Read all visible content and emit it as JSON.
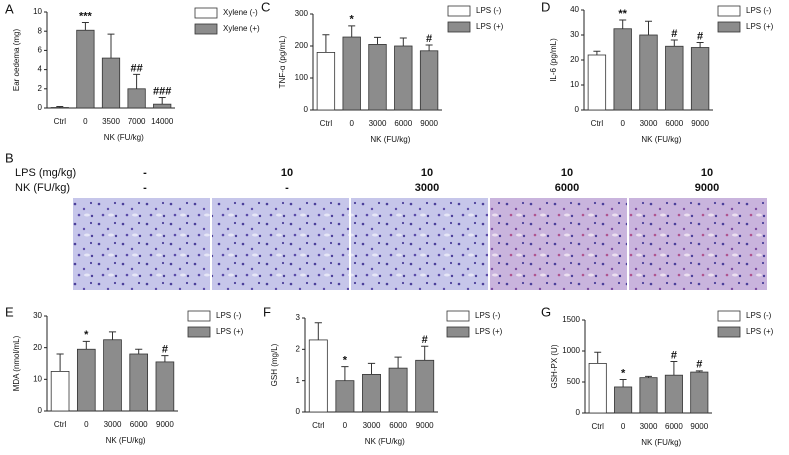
{
  "chart_data": [
    {
      "type": "bar",
      "label": "A",
      "y_label": "Ear oedema (mg)",
      "x_label": "NK (FU/kg)",
      "categories": [
        "Ctrl",
        "0",
        "3500",
        "7000",
        "14000"
      ],
      "series": [
        {
          "name": "Xylene (-)",
          "color": "#ffffff",
          "values": [
            0.05,
            null,
            null,
            null,
            null
          ],
          "errors": [
            0.1,
            null,
            null,
            null,
            null
          ]
        },
        {
          "name": "Xylene (+)",
          "color": "#8c8c8c",
          "values": [
            null,
            8.1,
            5.2,
            2.0,
            0.4
          ],
          "errors": [
            null,
            0.8,
            2.5,
            1.5,
            0.7
          ]
        }
      ],
      "annotations": [
        null,
        "***",
        null,
        "##",
        "###"
      ],
      "ylim": [
        0,
        10
      ],
      "yticks": [
        0,
        2,
        4,
        6,
        8,
        10
      ]
    },
    {
      "type": "bar",
      "label": "C",
      "y_label": "TNF-α (pg/mL)",
      "x_label": "NK (FU/kg)",
      "categories": [
        "Ctrl",
        "0",
        "3000",
        "6000",
        "9000"
      ],
      "series": [
        {
          "name": "LPS (-)",
          "color": "#ffffff",
          "values": [
            180,
            null,
            null,
            null,
            null
          ],
          "errors": [
            55,
            null,
            null,
            null,
            null
          ]
        },
        {
          "name": "LPS (+)",
          "color": "#8c8c8c",
          "values": [
            null,
            228,
            205,
            200,
            185
          ],
          "errors": [
            null,
            35,
            22,
            25,
            18
          ]
        }
      ],
      "annotations": [
        null,
        "*",
        null,
        null,
        "#"
      ],
      "ylim": [
        0,
        300
      ],
      "yticks": [
        0,
        100,
        200,
        300
      ]
    },
    {
      "type": "bar",
      "label": "D",
      "y_label": "IL-6 (pg/mL)",
      "x_label": "NK (FU/kg)",
      "categories": [
        "Ctrl",
        "0",
        "3000",
        "6000",
        "9000"
      ],
      "series": [
        {
          "name": "LPS (-)",
          "color": "#ffffff",
          "values": [
            22,
            null,
            null,
            null,
            null
          ],
          "errors": [
            1.5,
            null,
            null,
            null,
            null
          ]
        },
        {
          "name": "LPS (+)",
          "color": "#8c8c8c",
          "values": [
            null,
            32.5,
            30,
            25.5,
            25
          ],
          "errors": [
            null,
            3.5,
            5.5,
            2.5,
            2
          ]
        }
      ],
      "annotations": [
        null,
        "**",
        null,
        "#",
        "#"
      ],
      "ylim": [
        0,
        40
      ],
      "yticks": [
        0,
        10,
        20,
        30,
        40
      ]
    },
    {
      "type": "bar",
      "label": "E",
      "y_label": "MDA (nmol/mL)",
      "x_label": "NK (FU/kg)",
      "categories": [
        "Ctrl",
        "0",
        "3000",
        "6000",
        "9000"
      ],
      "series": [
        {
          "name": "LPS (-)",
          "color": "#ffffff",
          "values": [
            12.5,
            null,
            null,
            null,
            null
          ],
          "errors": [
            5.5,
            null,
            null,
            null,
            null
          ]
        },
        {
          "name": "LPS (+)",
          "color": "#8c8c8c",
          "values": [
            null,
            19.5,
            22.5,
            18,
            15.5
          ],
          "errors": [
            null,
            2.5,
            2.5,
            1.5,
            2
          ]
        }
      ],
      "annotations": [
        null,
        "*",
        null,
        null,
        "#"
      ],
      "ylim": [
        0,
        30
      ],
      "yticks": [
        0,
        10,
        20,
        30
      ]
    },
    {
      "type": "bar",
      "label": "F",
      "y_label": "GSH (mg/L)",
      "x_label": "NK (FU/kg)",
      "categories": [
        "Ctrl",
        "0",
        "3000",
        "6000",
        "9000"
      ],
      "series": [
        {
          "name": "LPS (-)",
          "color": "#ffffff",
          "values": [
            2.3,
            null,
            null,
            null,
            null
          ],
          "errors": [
            0.55,
            null,
            null,
            null,
            null
          ]
        },
        {
          "name": "LPS (+)",
          "color": "#8c8c8c",
          "values": [
            null,
            1.0,
            1.2,
            1.4,
            1.65
          ],
          "errors": [
            null,
            0.45,
            0.35,
            0.35,
            0.45
          ]
        }
      ],
      "annotations": [
        null,
        "*",
        null,
        null,
        "#"
      ],
      "ylim": [
        0,
        3
      ],
      "yticks": [
        0,
        1,
        2,
        3
      ]
    },
    {
      "type": "bar",
      "label": "G",
      "y_label": "GSH-PX (U)",
      "x_label": "NK (FU/kg)",
      "categories": [
        "Ctrl",
        "0",
        "3000",
        "6000",
        "9000"
      ],
      "series": [
        {
          "name": "LPS (-)",
          "color": "#ffffff",
          "values": [
            800,
            null,
            null,
            null,
            null
          ],
          "errors": [
            180,
            null,
            null,
            null,
            null
          ]
        },
        {
          "name": "LPS (+)",
          "color": "#8c8c8c",
          "values": [
            null,
            420,
            570,
            610,
            660
          ],
          "errors": [
            null,
            120,
            20,
            220,
            20
          ]
        }
      ],
      "annotations": [
        null,
        "*",
        null,
        "#",
        "#"
      ],
      "ylim": [
        0,
        1500
      ],
      "yticks": [
        0,
        500,
        1000,
        1500
      ]
    }
  ],
  "panel_b": {
    "label": "B",
    "rows": [
      {
        "label": "LPS (mg/kg)",
        "values": [
          "-",
          "10",
          "10",
          "10",
          "10"
        ]
      },
      {
        "label": "NK (FU/kg)",
        "values": [
          "-",
          "-",
          "3000",
          "6000",
          "9000"
        ]
      }
    ]
  }
}
